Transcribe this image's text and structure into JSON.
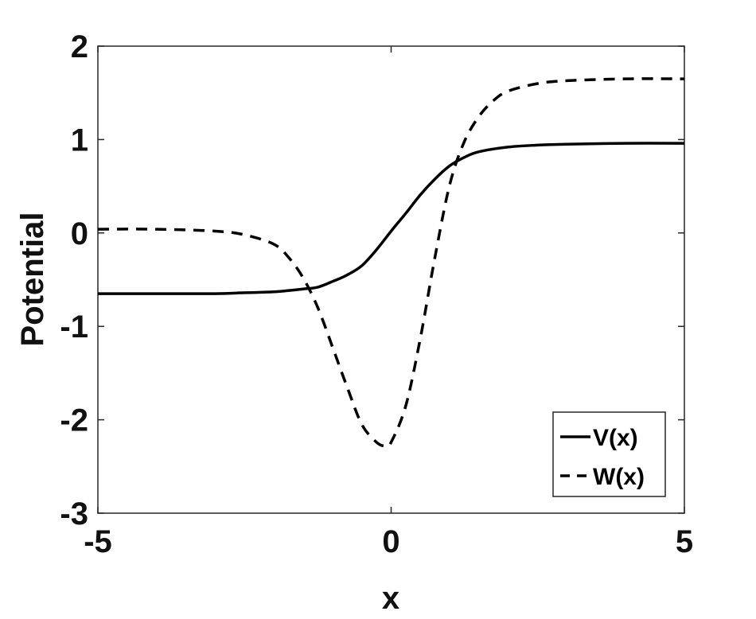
{
  "chart_data": {
    "type": "line",
    "title": "",
    "xlabel": "x",
    "ylabel": "Potential",
    "xlim": [
      -5,
      5
    ],
    "ylim": [
      -3,
      2
    ],
    "xticks": [
      -5,
      0,
      5
    ],
    "xtick_labels": [
      "-5",
      "0",
      "5"
    ],
    "yticks": [
      -3,
      -2,
      -1,
      0,
      1,
      2
    ],
    "ytick_labels": [
      "-3",
      "-2",
      "-1",
      "0",
      "1",
      "2"
    ],
    "grid": false,
    "legend_position": "bottom-right",
    "series": [
      {
        "name": "V(x)",
        "style": "solid",
        "color": "#000000",
        "x": [
          -5,
          -4,
          -3,
          -2.5,
          -2,
          -1.5,
          -1.25,
          -1,
          -0.75,
          -0.5,
          -0.25,
          0,
          0.25,
          0.5,
          0.75,
          1,
          1.25,
          1.5,
          2,
          2.5,
          3,
          4,
          5
        ],
        "y": [
          -0.65,
          -0.65,
          -0.65,
          -0.64,
          -0.63,
          -0.6,
          -0.58,
          -0.52,
          -0.45,
          -0.35,
          -0.18,
          0.02,
          0.21,
          0.41,
          0.58,
          0.72,
          0.81,
          0.87,
          0.92,
          0.94,
          0.95,
          0.96,
          0.96
        ]
      },
      {
        "name": "W(x)",
        "style": "dashed",
        "color": "#000000",
        "x": [
          -5,
          -4,
          -3,
          -2.5,
          -2,
          -1.75,
          -1.5,
          -1.25,
          -1,
          -0.75,
          -0.5,
          -0.25,
          -0.1,
          0,
          0.25,
          0.5,
          0.75,
          1,
          1.25,
          1.5,
          1.75,
          2,
          2.5,
          3,
          4,
          5
        ],
        "y": [
          0.04,
          0.04,
          0.02,
          -0.02,
          -0.12,
          -0.26,
          -0.48,
          -0.8,
          -1.22,
          -1.65,
          -2.05,
          -2.24,
          -2.28,
          -2.24,
          -1.85,
          -1.12,
          -0.25,
          0.52,
          0.98,
          1.25,
          1.42,
          1.52,
          1.6,
          1.63,
          1.65,
          1.65
        ]
      }
    ]
  }
}
